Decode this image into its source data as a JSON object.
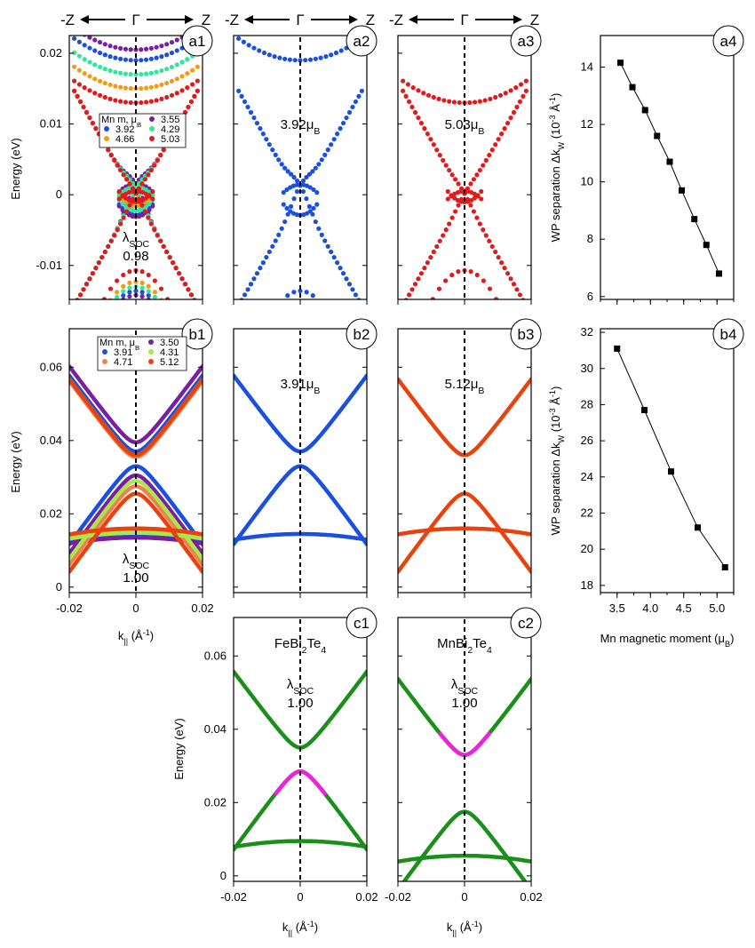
{
  "header": {
    "minus_z": "-Z",
    "gamma": "Γ",
    "z": "Z"
  },
  "colors": {
    "blue": "#1a4fe0",
    "red": "#e31a1c",
    "orange_red": "#e8420e",
    "purple": "#7b1fa2",
    "orange": "#f39c12",
    "teal_green": "#2ee89c",
    "green": "#1a8f1a",
    "magenta": "#ee22dd"
  },
  "axis_labels": {
    "energy": "Energy (eV)",
    "k_parallel": "k|| (Å-1)",
    "wp_separation": "WP separation ΔkW (10-3 Å-1)",
    "mn_moment": "Mn magnetic moment (μB)"
  },
  "chart_data": [
    {
      "id": "a1",
      "label": "a1",
      "type": "scatter",
      "xlim": [
        -0.02,
        0.02
      ],
      "ylim": [
        -0.0148,
        0.0225
      ],
      "yticks": [
        "-0.01",
        "0",
        "0.01",
        "0.02"
      ],
      "legend_title": "Mn m, μB",
      "series": [
        {
          "name": "3.92",
          "color": "#1a4fe0",
          "gap": 0.0036,
          "upper_min": 0.019,
          "lower_max": -0.0136
        },
        {
          "name": "3.55",
          "color": "#7b1fa2",
          "gap": 0.0039,
          "upper_min": 0.0205,
          "lower_max": -0.0142
        },
        {
          "name": "4.66",
          "color": "#f39c12",
          "gap": 0.002,
          "upper_min": 0.015,
          "lower_max": -0.0123
        },
        {
          "name": "4.29",
          "color": "#2ee89c",
          "gap": 0.0028,
          "upper_min": 0.017,
          "lower_max": -0.013
        },
        {
          "name": "5.03",
          "color": "#e31a1c",
          "gap": 0.0013,
          "upper_min": 0.013,
          "lower_max": -0.0107
        }
      ],
      "annotation": [
        "λSOC",
        "0.98"
      ]
    },
    {
      "id": "a2",
      "label": "a2",
      "type": "scatter",
      "xlim": [
        -0.02,
        0.02
      ],
      "ylim": [
        -0.0148,
        0.0225
      ],
      "series": [
        {
          "name": "3.92μB",
          "color": "#1a4fe0",
          "gap": 0.0036,
          "upper_min": 0.019,
          "lower_max": -0.0136
        }
      ],
      "annotation": [
        "3.92μB"
      ]
    },
    {
      "id": "a3",
      "label": "a3",
      "type": "scatter",
      "xlim": [
        -0.02,
        0.02
      ],
      "ylim": [
        -0.0148,
        0.0225
      ],
      "series": [
        {
          "name": "5.03μB",
          "color": "#e31a1c",
          "gap": 0.0013,
          "upper_min": 0.013,
          "lower_max": -0.0107
        }
      ],
      "annotation": [
        "5.03μB"
      ]
    },
    {
      "id": "a4",
      "label": "a4",
      "type": "line",
      "x": [
        3.55,
        3.73,
        3.92,
        4.1,
        4.29,
        4.47,
        4.66,
        4.84,
        5.03
      ],
      "y": [
        14.15,
        13.3,
        12.5,
        11.6,
        10.7,
        9.7,
        8.7,
        7.8,
        6.8
      ],
      "xlim": [
        3.25,
        5.25
      ],
      "ylim": [
        5.9,
        15.1
      ],
      "yticks": [
        "6",
        "8",
        "10",
        "12",
        "14"
      ],
      "xticks": [
        3.5,
        4.0,
        4.5,
        5.0
      ]
    },
    {
      "id": "b1",
      "label": "b1",
      "type": "line",
      "xlim": [
        -0.02,
        0.02
      ],
      "ylim": [
        -0.0015,
        0.0705
      ],
      "yticks": [
        "0",
        "0.02",
        "0.04",
        "0.06"
      ],
      "xticks": [
        "-0.02",
        "0",
        "0.02"
      ],
      "legend_title": "Mn m, μB",
      "series": [
        {
          "name": "3.91",
          "color": "#1a4fe0",
          "cond_min": 0.037,
          "val_max": 0.033,
          "flat": 0.0145
        },
        {
          "name": "3.50",
          "color": "#7b1fa2",
          "cond_min": 0.0395,
          "val_max": 0.0305,
          "flat": 0.0135
        },
        {
          "name": "4.71",
          "color": "#f08050",
          "cond_min": 0.0355,
          "val_max": 0.0275,
          "flat": 0.015
        },
        {
          "name": "4.31",
          "color": "#a8e84a",
          "cond_min": 0.036,
          "val_max": 0.029,
          "flat": 0.0148
        },
        {
          "name": "5.12",
          "color": "#e8420e",
          "cond_min": 0.036,
          "val_max": 0.0255,
          "flat": 0.016
        }
      ],
      "annotation": [
        "λSOC",
        "1.00"
      ]
    },
    {
      "id": "b2",
      "label": "b2",
      "type": "line",
      "xlim": [
        -0.02,
        0.02
      ],
      "ylim": [
        -0.0015,
        0.0705
      ],
      "series": [
        {
          "name": "3.91μB",
          "color": "#1a4fe0",
          "cond_min": 0.037,
          "val_max": 0.033,
          "flat": 0.0145
        }
      ],
      "annotation": [
        "3.91μB"
      ]
    },
    {
      "id": "b3",
      "label": "b3",
      "type": "line",
      "xlim": [
        -0.02,
        0.02
      ],
      "ylim": [
        -0.0015,
        0.0705
      ],
      "series": [
        {
          "name": "5.12μB",
          "color": "#e8420e",
          "cond_min": 0.036,
          "val_max": 0.0255,
          "flat": 0.016
        }
      ],
      "annotation": [
        "5.12μB"
      ]
    },
    {
      "id": "b4",
      "label": "b4",
      "type": "line",
      "x": [
        3.5,
        3.91,
        4.31,
        4.71,
        5.12
      ],
      "y": [
        31.1,
        27.7,
        24.3,
        21.2,
        19.0
      ],
      "xlim": [
        3.25,
        5.25
      ],
      "ylim": [
        17.6,
        32.2
      ],
      "yticks": [
        "18",
        "20",
        "22",
        "24",
        "26",
        "28",
        "30",
        "32"
      ],
      "xticks": [
        "3.5",
        "4.0",
        "4.5",
        "5.0"
      ]
    },
    {
      "id": "c1",
      "label": "c1",
      "type": "line",
      "title": "FeBi2Te4",
      "xlim": [
        -0.02,
        0.02
      ],
      "ylim": [
        -0.0015,
        0.0705
      ],
      "yticks": [
        "0",
        "0.02",
        "0.04",
        "0.06"
      ],
      "xticks": [
        "-0.02",
        "0",
        "0.02"
      ],
      "series": [
        {
          "name": "FeBi2Te4",
          "color": "#1a8f1a",
          "cond_min": 0.035,
          "val_max": 0.0285,
          "flat": 0.0095,
          "highlight": "valence"
        }
      ],
      "annotation": [
        "λSOC",
        "1.00"
      ]
    },
    {
      "id": "c2",
      "label": "c2",
      "type": "line",
      "title": "MnBi2Te4",
      "xlim": [
        -0.02,
        0.02
      ],
      "ylim": [
        -0.0015,
        0.0705
      ],
      "xticks": [
        "-0.02",
        "0",
        "0.02"
      ],
      "series": [
        {
          "name": "MnBi2Te4",
          "color": "#1a8f1a",
          "cond_min": 0.033,
          "val_max": 0.0175,
          "flat": 0.0055,
          "highlight": "conduction"
        }
      ],
      "annotation": [
        "λSOC",
        "1.00"
      ]
    }
  ]
}
